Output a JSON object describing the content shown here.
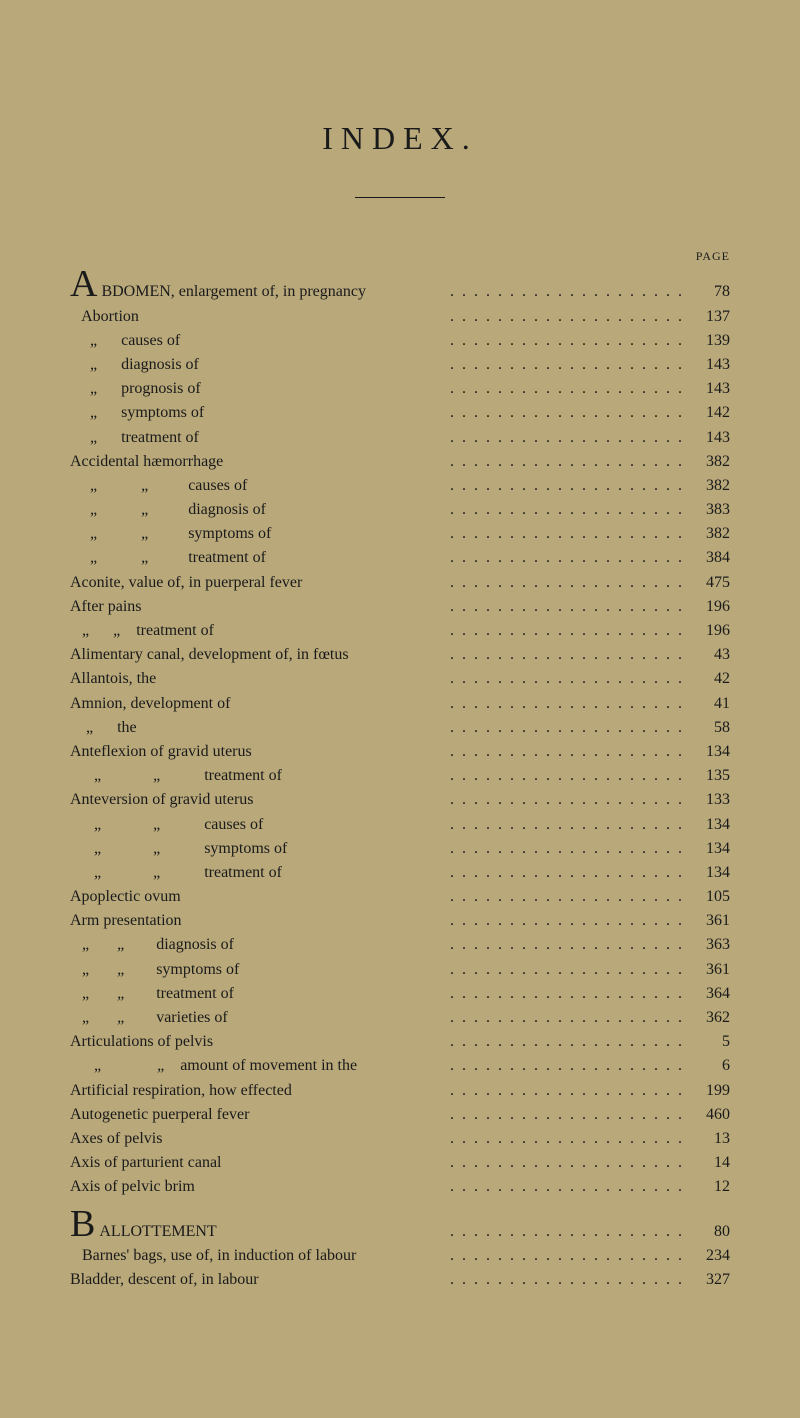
{
  "title": "INDEX.",
  "page_label": "PAGE",
  "colors": {
    "background": "#b8a87a",
    "text": "#1a1a1a"
  },
  "typography": {
    "title_fontsize": 32,
    "title_letterspacing": 8,
    "body_fontsize": 16,
    "page_header_fontsize": 12,
    "line_height": 1.45
  },
  "entries": [
    {
      "text": "BDOMEN, enlargement of, in pregnancy",
      "page": "78",
      "dropcap": "A"
    },
    {
      "text": "   Abortion",
      "page": "137"
    },
    {
      "text": "     „      causes of",
      "page": "139"
    },
    {
      "text": "     „      diagnosis of",
      "page": "143"
    },
    {
      "text": "     „      prognosis of",
      "page": "143"
    },
    {
      "text": "     „      symptoms of",
      "page": "142"
    },
    {
      "text": "     „      treatment of",
      "page": "143"
    },
    {
      "text": "Accidental hæmorrhage",
      "page": "382"
    },
    {
      "text": "     „           „          causes of",
      "page": "382"
    },
    {
      "text": "     „           „          diagnosis of",
      "page": "383"
    },
    {
      "text": "     „           „          symptoms of",
      "page": "382"
    },
    {
      "text": "     „           „          treatment of",
      "page": "384"
    },
    {
      "text": "Aconite, value of, in puerperal fever",
      "page": "475"
    },
    {
      "text": "After pains",
      "page": "196"
    },
    {
      "text": "   „      „    treatment of",
      "page": "196"
    },
    {
      "text": "Alimentary canal, development of, in fœtus",
      "page": "43"
    },
    {
      "text": "Allantois, the",
      "page": "42"
    },
    {
      "text": "Amnion, development of",
      "page": "41"
    },
    {
      "text": "    „      the",
      "page": "58"
    },
    {
      "text": "Anteflexion of gravid uterus",
      "page": "134"
    },
    {
      "text": "      „             „           treatment of",
      "page": "135"
    },
    {
      "text": "Anteversion of gravid uterus",
      "page": "133"
    },
    {
      "text": "      „             „           causes of",
      "page": "134"
    },
    {
      "text": "      „             „           symptoms of",
      "page": "134"
    },
    {
      "text": "      „             „           treatment of",
      "page": "134"
    },
    {
      "text": "Apoplectic ovum",
      "page": "105"
    },
    {
      "text": "Arm presentation",
      "page": "361"
    },
    {
      "text": "   „       „        diagnosis of",
      "page": "363"
    },
    {
      "text": "   „       „        symptoms of",
      "page": "361"
    },
    {
      "text": "   „       „        treatment of",
      "page": "364"
    },
    {
      "text": "   „       „        varieties of",
      "page": "362"
    },
    {
      "text": "Articulations of pelvis",
      "page": "5"
    },
    {
      "text": "      „              „    amount of movement in the",
      "page": "6"
    },
    {
      "text": "Artificial respiration, how effected",
      "page": "199"
    },
    {
      "text": "Autogenetic puerperal fever",
      "page": "460"
    },
    {
      "text": "Axes of pelvis",
      "page": "13"
    },
    {
      "text": "Axis of parturient canal",
      "page": "14"
    },
    {
      "text": "Axis of pelvic brim",
      "page": "12"
    },
    {
      "text": "ALLOTTEMENT",
      "page": "80",
      "dropcap": "B"
    },
    {
      "text": "   Barnes' bags, use of, in induction of labour",
      "page": "234"
    },
    {
      "text": "Bladder, descent of, in labour",
      "page": "327"
    }
  ]
}
